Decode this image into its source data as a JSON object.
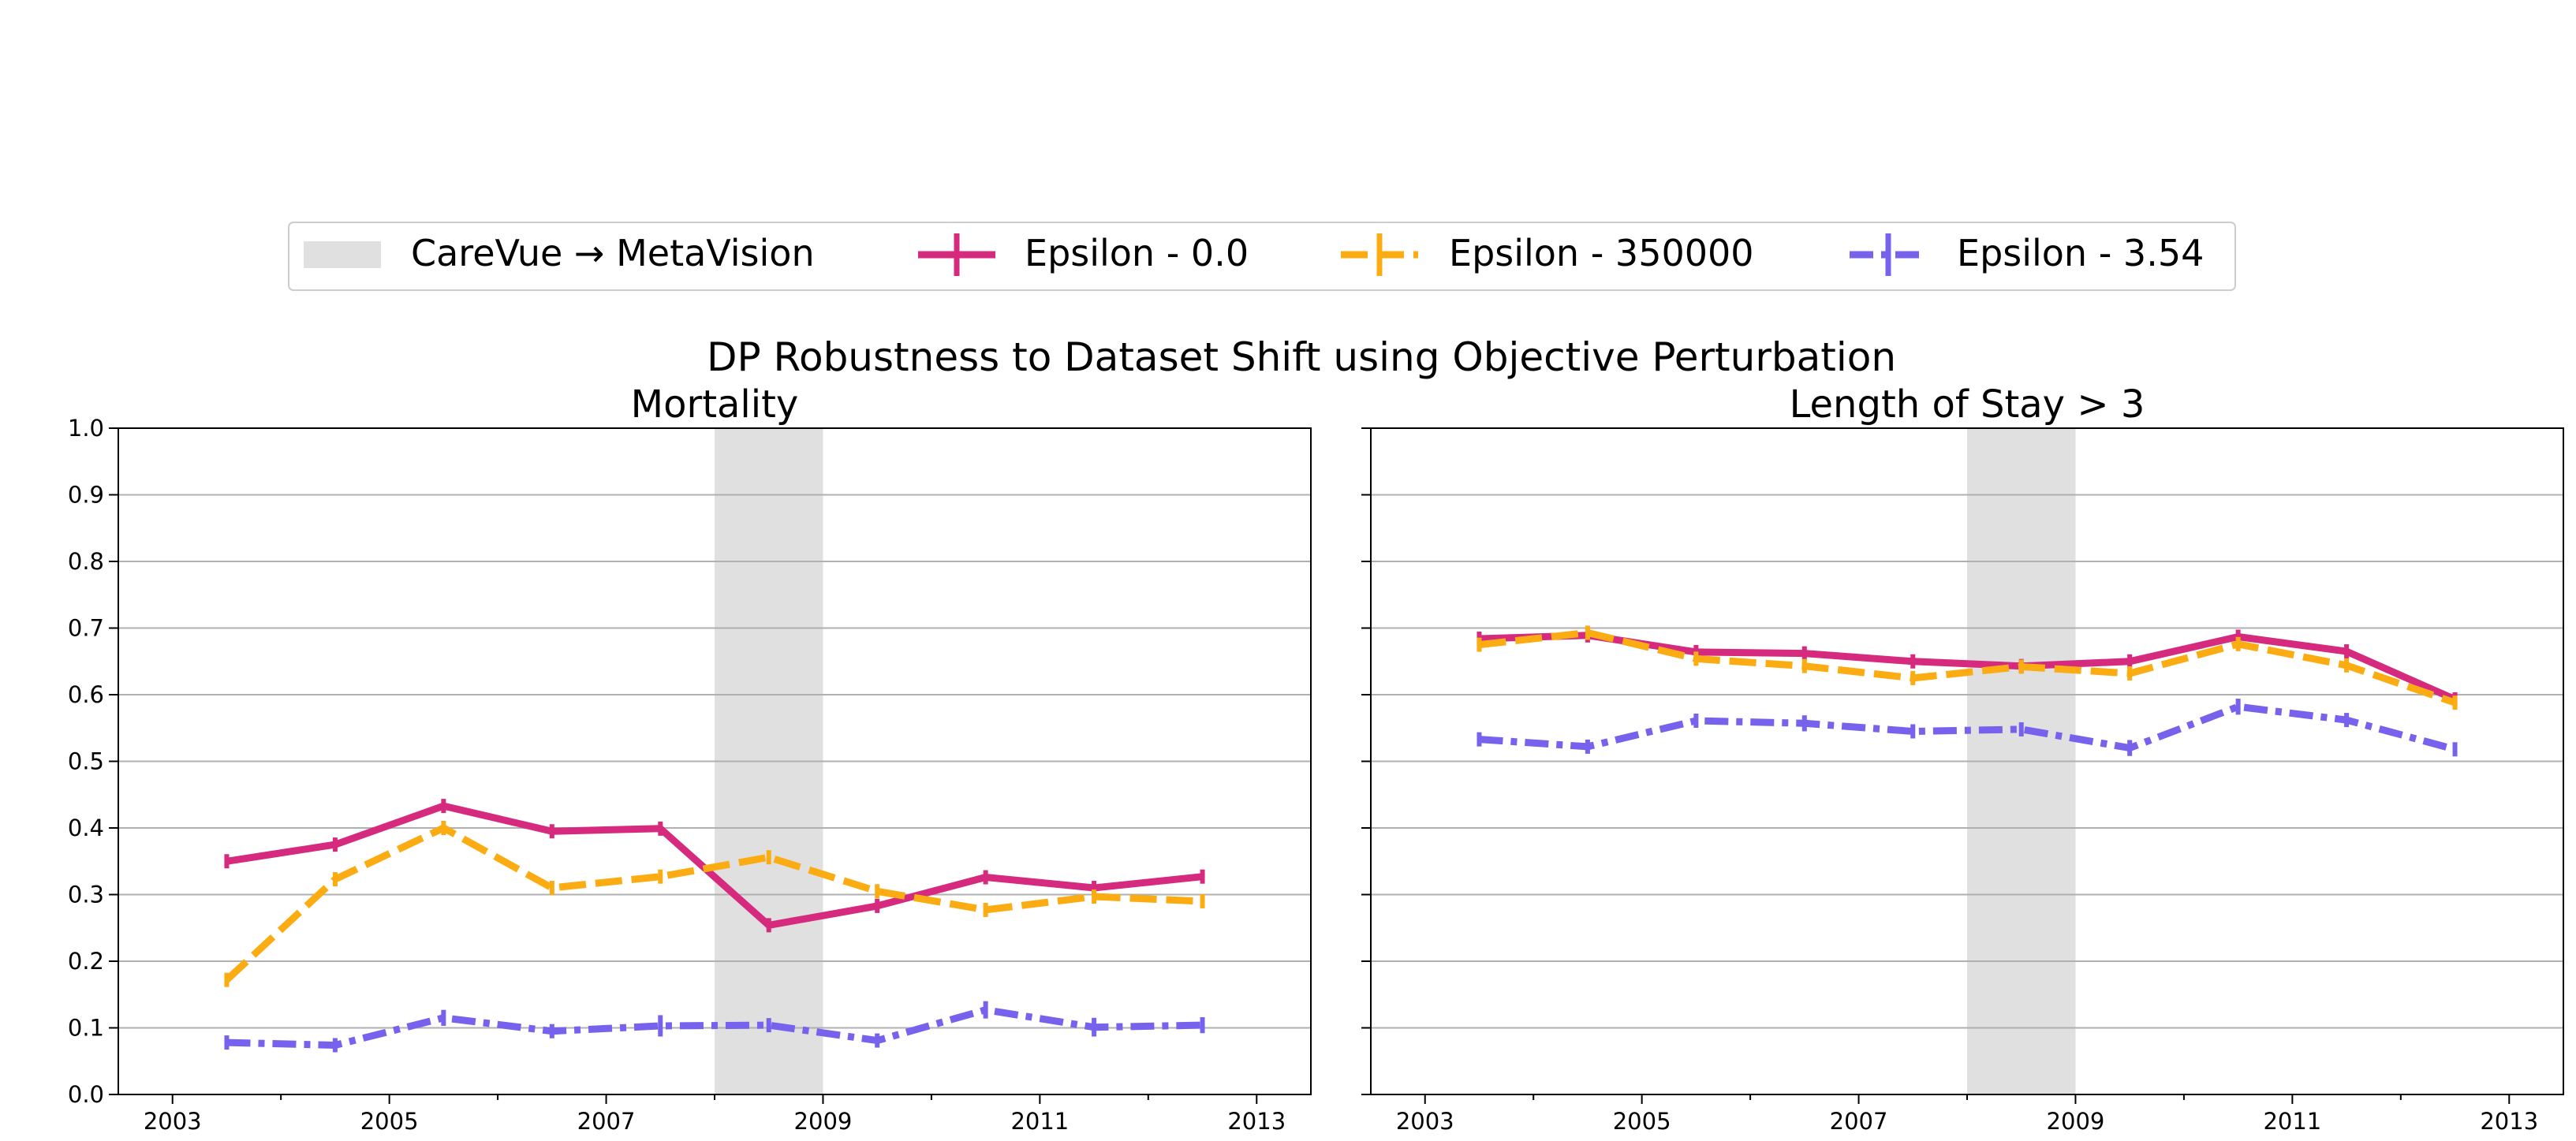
{
  "suptitle": "DP Robustness to Dataset Shift using Objective Perturbation",
  "legend": {
    "entries": [
      {
        "label": "CareVue → MetaVision",
        "kind": "patch",
        "color": "#e0e0e0"
      },
      {
        "label": "Epsilon - 0.0",
        "kind": "line",
        "style": "solid",
        "color": "#d62a7f"
      },
      {
        "label": "Epsilon - 350000",
        "kind": "line",
        "style": "dashed",
        "color": "#fbac12"
      },
      {
        "label": "Epsilon - 3.54",
        "kind": "line",
        "style": "dashdot",
        "color": "#7662ec"
      }
    ]
  },
  "chart_data": [
    {
      "type": "line",
      "title": "Mortality",
      "xlabel": "",
      "ylabel": "",
      "xlim": [
        2002.5,
        2013.5
      ],
      "ylim": [
        0.0,
        1.0
      ],
      "xticks": [
        "2003",
        "2005",
        "2007",
        "2009",
        "2011",
        "2013"
      ],
      "yticks": [
        "0.0",
        "0.1",
        "0.2",
        "0.3",
        "0.4",
        "0.5",
        "0.6",
        "0.7",
        "0.8",
        "0.9",
        "1.0"
      ],
      "grid": "horizontal",
      "shaded_region": {
        "label": "CareVue → MetaVision",
        "x_range": [
          2008,
          2009
        ]
      },
      "x": [
        2003.5,
        2004.5,
        2005.5,
        2006.5,
        2007.5,
        2008.5,
        2009.5,
        2010.5,
        2011.5,
        2012.5
      ],
      "series": [
        {
          "name": "Epsilon - 0.0",
          "values": [
            0.35,
            0.375,
            0.433,
            0.395,
            0.399,
            0.254,
            0.283,
            0.326,
            0.31,
            0.327
          ],
          "errors": [
            0.004,
            0.008,
            0.01,
            0.01,
            0.004,
            0.004,
            0.009,
            0.004,
            0.004,
            0.004
          ]
        },
        {
          "name": "Epsilon - 350000",
          "values": [
            0.172,
            0.323,
            0.4,
            0.31,
            0.327,
            0.356,
            0.305,
            0.277,
            0.297,
            0.29
          ],
          "errors": [
            0.004,
            0.004,
            0.004,
            0.004,
            0.004,
            0.004,
            0.004,
            0.004,
            0.004,
            0.004
          ]
        },
        {
          "name": "Epsilon - 3.54",
          "values": [
            0.078,
            0.074,
            0.115,
            0.095,
            0.103,
            0.104,
            0.081,
            0.127,
            0.101,
            0.104
          ],
          "errors": [
            0.008,
            0.004,
            0.012,
            0.01,
            0.016,
            0.004,
            0.006,
            0.013,
            0.014,
            0.012
          ]
        }
      ]
    },
    {
      "type": "line",
      "title": "Length of Stay > 3",
      "xlabel": "",
      "ylabel": "",
      "xlim": [
        2002.5,
        2013.5
      ],
      "ylim": [
        0.0,
        1.0
      ],
      "xticks": [
        "2003",
        "2005",
        "2007",
        "2009",
        "2011",
        "2013"
      ],
      "yticks": [],
      "grid": "horizontal",
      "shaded_region": {
        "label": "CareVue → MetaVision",
        "x_range": [
          2008,
          2009
        ]
      },
      "x": [
        2003.5,
        2004.5,
        2005.5,
        2006.5,
        2007.5,
        2008.5,
        2009.5,
        2010.5,
        2011.5,
        2012.5
      ],
      "series": [
        {
          "name": "Epsilon - 0.0",
          "values": [
            0.684,
            0.689,
            0.664,
            0.662,
            0.65,
            0.643,
            0.65,
            0.687,
            0.665,
            0.593
          ],
          "errors": [
            0.004,
            0.004,
            0.004,
            0.004,
            0.004,
            0.004,
            0.004,
            0.004,
            0.004,
            0.004
          ]
        },
        {
          "name": "Epsilon - 350000",
          "values": [
            0.675,
            0.693,
            0.654,
            0.643,
            0.625,
            0.642,
            0.632,
            0.676,
            0.644,
            0.588
          ],
          "errors": [
            0.004,
            0.004,
            0.004,
            0.004,
            0.004,
            0.004,
            0.004,
            0.004,
            0.004,
            0.004
          ]
        },
        {
          "name": "Epsilon - 3.54",
          "values": [
            0.533,
            0.522,
            0.561,
            0.557,
            0.545,
            0.548,
            0.52,
            0.582,
            0.562,
            0.518
          ],
          "errors": [
            0.006,
            0.004,
            0.004,
            0.012,
            0.01,
            0.004,
            0.012,
            0.012,
            0.01,
            0.006
          ]
        }
      ]
    }
  ]
}
